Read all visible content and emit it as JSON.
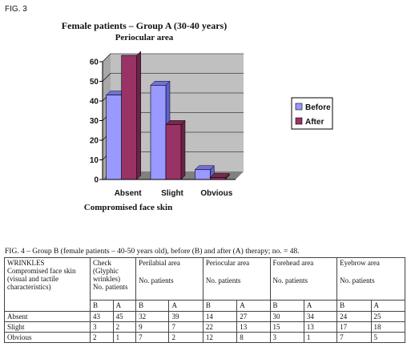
{
  "fig3_label": "FIG. 3",
  "chart_data": {
    "type": "bar",
    "title": "Female patients – Group A (30-40 years)",
    "subtitle": "Periocular area",
    "xlabel": "Compromised face skin",
    "categories": [
      "Absent",
      "Slight",
      "Obvious"
    ],
    "series": [
      {
        "name": "Before",
        "values": [
          43,
          48,
          5
        ],
        "color": "#9999ff"
      },
      {
        "name": "After",
        "values": [
          65,
          28,
          1
        ],
        "color": "#993366"
      }
    ],
    "ylim": [
      0,
      60
    ],
    "yticks": [
      "0",
      "10",
      "20",
      "30",
      "40",
      "50",
      "60"
    ],
    "grid": true,
    "legend": "right",
    "wall_color": "#c0c0c0",
    "floor_color": "#808080"
  },
  "fig4": {
    "caption": "FIG. 4 – Group B (female patients – 40-50 years old), before (B) and after (A) therapy; no. = 48.",
    "wrinkles_header": "WRINKLES",
    "wrinkles_desc": "Compromised face skin (visual and tactile characteristics)",
    "area_headers": [
      {
        "name": "Check (Glyphic wrinkles)",
        "sub": "No. patients"
      },
      {
        "name": "Perilabial area",
        "sub": "No. patients"
      },
      {
        "name": "Periocular area",
        "sub": "No. patients"
      },
      {
        "name": "Forehead area",
        "sub": "No. patients"
      },
      {
        "name": "Eyebrow area",
        "sub": "No. patients"
      }
    ],
    "before_label": "B",
    "after_label": "A",
    "rows": [
      {
        "label": "Absent",
        "values": [
          "43",
          "45",
          "32",
          "39",
          "14",
          "27",
          "30",
          "34",
          "24",
          "25"
        ]
      },
      {
        "label": "Slight",
        "values": [
          "3",
          "2",
          "9",
          "7",
          "22",
          "13",
          "15",
          "13",
          "17",
          "18"
        ]
      },
      {
        "label": "Obvious",
        "values": [
          "2",
          "1",
          "7",
          "2",
          "12",
          "8",
          "3",
          "1",
          "7",
          "5"
        ]
      }
    ]
  }
}
